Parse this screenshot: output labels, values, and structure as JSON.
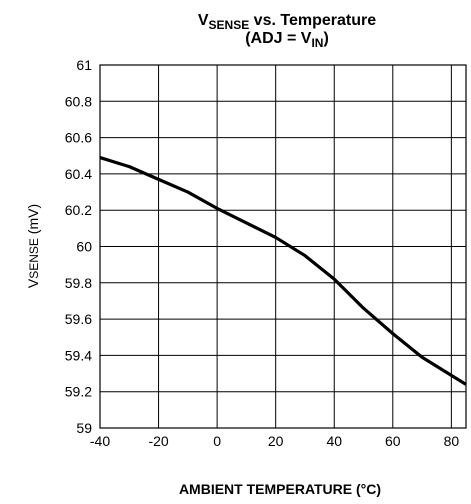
{
  "chart_data": {
    "type": "line",
    "title": {
      "line1": {
        "v": "V",
        "sub": "SENSE",
        "rest": " vs. Temperature"
      },
      "line2": {
        "pre": "(ADJ = V",
        "sub": "IN",
        "post": ")"
      }
    },
    "xlabel": "AMBIENT TEMPERATURE (°C)",
    "ylabel": {
      "v": "V",
      "sub": "SENSE",
      "post": " (mV)"
    },
    "xlim": [
      -40,
      85
    ],
    "ylim": [
      59,
      61
    ],
    "xticks": [
      -40,
      -20,
      0,
      20,
      40,
      60,
      80
    ],
    "xtick_labels": [
      "-40",
      "-20",
      "0",
      "20",
      "40",
      "60",
      "80"
    ],
    "yticks": [
      59,
      59.2,
      59.4,
      59.6,
      59.8,
      60,
      60.2,
      60.4,
      60.6,
      60.8,
      61
    ],
    "ytick_labels": [
      "59",
      "59.2",
      "59.4",
      "59.6",
      "59.8",
      "60",
      "60.2",
      "60.4",
      "60.6",
      "60.8",
      "61"
    ],
    "grid": true,
    "series": [
      {
        "x": [
          -40,
          -30,
          -20,
          -10,
          0,
          10,
          20,
          30,
          40,
          50,
          60,
          70,
          80,
          85
        ],
        "y": [
          60.49,
          60.44,
          60.37,
          60.3,
          60.21,
          60.13,
          60.05,
          59.95,
          59.82,
          59.66,
          59.52,
          59.39,
          59.29,
          59.24
        ]
      }
    ],
    "line_color": "#000000"
  }
}
